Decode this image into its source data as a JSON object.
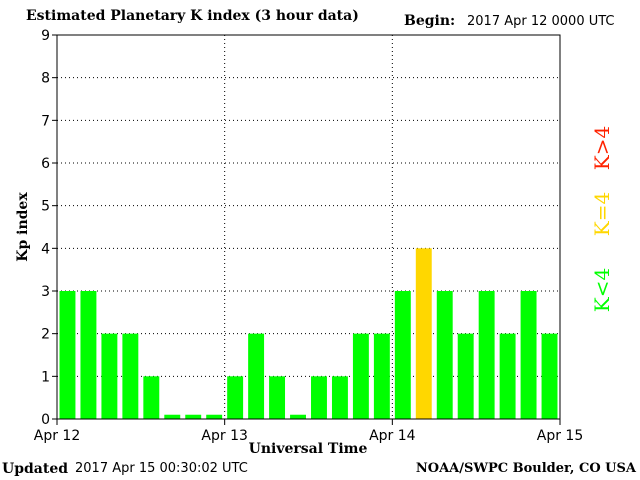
{
  "header": {
    "title": "Estimated Planetary K index (3 hour data)",
    "begin_label": "Begin:",
    "begin_value": "2017 Apr 12 0000 UTC"
  },
  "footer": {
    "updated_label": "Updated",
    "updated_value": "2017 Apr 15 00:30:02 UTC",
    "credit": "NOAA/SWPC Boulder, CO USA"
  },
  "legend": [
    {
      "label": "K<4",
      "color": "#00ff00"
    },
    {
      "label": "K=4",
      "color": "#ffd700"
    },
    {
      "label": "K>4",
      "color": "#ff2200"
    }
  ],
  "chart_data": {
    "type": "bar",
    "title": "Estimated Planetary K index (3 hour data)",
    "xlabel": "Universal Time",
    "ylabel": "Kp index",
    "ylim": [
      0,
      9
    ],
    "yticks": [
      0,
      1,
      2,
      3,
      4,
      5,
      6,
      7,
      8,
      9
    ],
    "xticks": [
      "Apr 12",
      "Apr 13",
      "Apr 14",
      "Apr 15"
    ],
    "grid": true,
    "bar_colors": {
      "below_4": "#00ff00",
      "equal_4": "#ffd700",
      "above_4": "#ff2200"
    },
    "values": [
      3,
      3,
      2,
      2,
      1,
      0.1,
      0.1,
      0.1,
      1,
      2,
      1,
      0.1,
      1,
      1,
      2,
      2,
      3,
      4,
      3,
      2,
      3,
      2,
      3,
      2
    ]
  }
}
